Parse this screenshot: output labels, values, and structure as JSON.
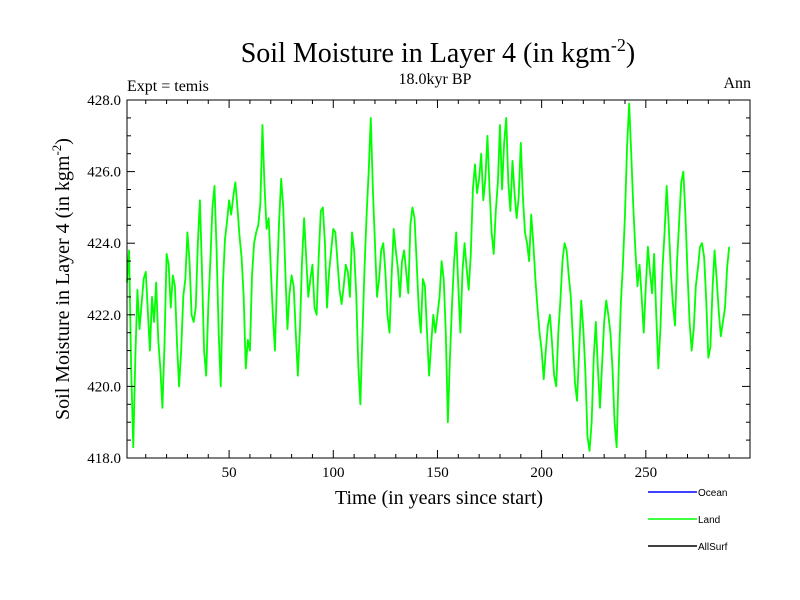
{
  "chart_data": {
    "type": "line",
    "title_main": "Soil Moisture in Layer 4 (in kgm",
    "title_sup": "-2",
    "title_close": ")",
    "subtitle": "18.0kyr BP",
    "left_label": "Expt = temis",
    "right_label": "Ann",
    "xlabel": "Time (in years since start)",
    "ylabel_main": "Soil Moisture in Layer 4 (in kgm",
    "ylabel_sup": "-2",
    "ylabel_close": ")",
    "xlim": [
      1,
      300
    ],
    "ylim": [
      418,
      428
    ],
    "xticks": [
      50,
      100,
      150,
      200,
      250
    ],
    "xtick_labels": [
      "50",
      "100",
      "150",
      "200",
      "250"
    ],
    "yticks": [
      418,
      420,
      422,
      424,
      426,
      428
    ],
    "ytick_labels": [
      "418.0",
      "420.0",
      "422.0",
      "424.0",
      "426.0",
      "428.0"
    ],
    "legend": [
      {
        "name": "Ocean",
        "color": "#0000ff"
      },
      {
        "name": "Land",
        "color": "#00ff00"
      },
      {
        "name": "AllSurf",
        "color": "#000000"
      }
    ],
    "series": [
      {
        "name": "Land",
        "color": "#00ff00",
        "x_start": 1,
        "x_step": 1,
        "values": [
          422.9,
          423.8,
          420.5,
          418.3,
          420.8,
          422.7,
          421.6,
          422.3,
          423.0,
          423.2,
          422.1,
          421.0,
          422.5,
          421.8,
          422.9,
          421.3,
          420.5,
          419.4,
          421.2,
          423.7,
          423.4,
          422.2,
          423.1,
          422.8,
          421.2,
          420.0,
          421.0,
          422.5,
          423.0,
          424.3,
          423.5,
          422.0,
          421.8,
          422.2,
          424.0,
          425.2,
          423.2,
          421.0,
          420.3,
          422.2,
          423.5,
          425.0,
          425.6,
          423.8,
          421.5,
          420.0,
          422.8,
          424.1,
          424.6,
          425.2,
          424.8,
          425.3,
          425.7,
          425.0,
          424.2,
          423.6,
          422.5,
          420.5,
          421.3,
          421.0,
          423.1,
          424.0,
          424.3,
          424.5,
          425.1,
          427.3,
          425.6,
          424.4,
          424.7,
          423.3,
          422.0,
          421.0,
          423.0,
          424.6,
          425.8,
          425.0,
          423.2,
          421.6,
          422.6,
          423.1,
          422.8,
          421.5,
          420.3,
          421.6,
          423.5,
          424.7,
          423.6,
          422.5,
          423.0,
          423.4,
          422.2,
          422.0,
          423.6,
          424.9,
          425.0,
          424.0,
          422.2,
          423.2,
          423.8,
          424.4,
          424.3,
          423.5,
          422.7,
          422.3,
          422.8,
          423.4,
          423.2,
          422.5,
          424.3,
          423.8,
          422.6,
          420.6,
          419.5,
          421.5,
          423.3,
          424.8,
          426.0,
          427.5,
          425.5,
          424.0,
          422.5,
          423.0,
          423.8,
          424.0,
          423.2,
          422.0,
          421.5,
          423.1,
          424.4,
          423.8,
          423.3,
          422.5,
          423.5,
          423.8,
          423.2,
          422.6,
          424.5,
          425.0,
          424.7,
          423.5,
          422.2,
          421.5,
          423.0,
          422.8,
          421.5,
          420.3,
          421.2,
          422.0,
          421.5,
          422.0,
          422.5,
          423.5,
          423.0,
          421.5,
          419.0,
          420.8,
          422.3,
          423.5,
          424.3,
          422.8,
          421.5,
          423.2,
          424.0,
          423.3,
          422.7,
          423.7,
          425.5,
          426.2,
          425.4,
          425.8,
          426.5,
          425.2,
          425.8,
          427.0,
          425.5,
          424.3,
          423.7,
          424.9,
          425.7,
          427.3,
          425.5,
          426.8,
          427.5,
          425.7,
          424.9,
          426.3,
          425.4,
          424.7,
          425.3,
          426.8,
          425.3,
          424.3,
          424.0,
          423.5,
          424.8,
          424.0,
          423.0,
          422.2,
          421.5,
          421.0,
          420.2,
          421.0,
          421.7,
          422.0,
          421.2,
          420.3,
          420.0,
          421.5,
          422.4,
          423.5,
          424.0,
          423.8,
          423.1,
          422.5,
          421.3,
          420.1,
          419.6,
          421.0,
          422.4,
          421.6,
          420.4,
          418.6,
          418.2,
          419.0,
          420.8,
          421.8,
          420.5,
          419.4,
          420.6,
          421.8,
          422.4,
          422.0,
          421.5,
          420.5,
          419.0,
          418.3,
          420.5,
          422.3,
          423.4,
          424.8,
          426.7,
          427.9,
          426.5,
          425.0,
          423.8,
          422.8,
          423.4,
          422.5,
          421.5,
          422.8,
          423.9,
          423.2,
          422.6,
          423.7,
          422.0,
          420.5,
          421.6,
          423.3,
          424.3,
          425.6,
          424.5,
          423.2,
          422.3,
          421.7,
          423.5,
          424.6,
          425.7,
          426.0,
          424.8,
          423.2,
          421.8,
          421.0,
          421.6,
          422.8,
          423.3,
          423.9,
          424.0,
          423.6,
          422.4,
          420.8,
          421.1,
          422.7,
          423.8,
          423.0,
          422.1,
          421.4,
          421.8,
          422.2,
          423.3,
          423.9
        ]
      }
    ]
  }
}
